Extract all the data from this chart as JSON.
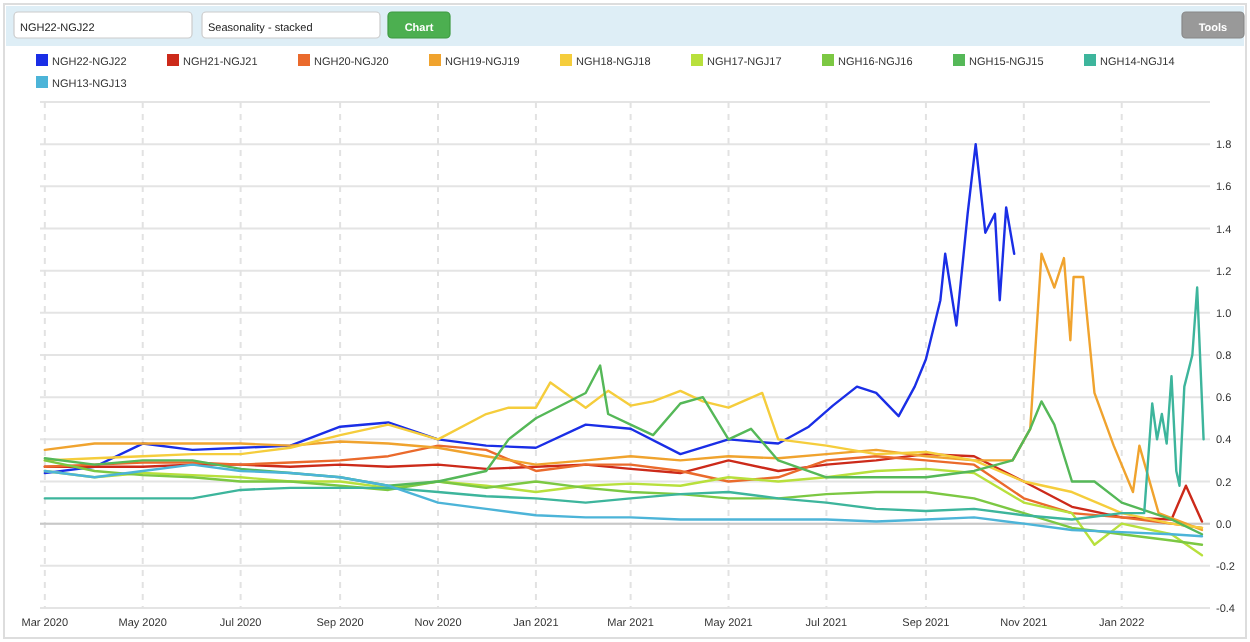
{
  "chart_data": {
    "type": "line",
    "annotations": [
      "NGH22-NGJ22",
      "Seasonality - stacked",
      "Chart",
      "Tools"
    ],
    "legend": "top",
    "grid": true,
    "xlim": [
      "2020-02-27",
      "2022-02-25"
    ],
    "ylim": [
      -0.4,
      2.0
    ],
    "xticks": [
      {
        "value": "2020-03-01",
        "label": "Mar 2020"
      },
      {
        "value": "2020-05-01",
        "label": "May 2020"
      },
      {
        "value": "2020-07-01",
        "label": "Jul 2020"
      },
      {
        "value": "2020-09-01",
        "label": "Sep 2020"
      },
      {
        "value": "2020-11-01",
        "label": "Nov 2020"
      },
      {
        "value": "2021-01-01",
        "label": "Jan 2021"
      },
      {
        "value": "2021-03-01",
        "label": "Mar 2021"
      },
      {
        "value": "2021-05-01",
        "label": "May 2021"
      },
      {
        "value": "2021-07-01",
        "label": "Jul 2021"
      },
      {
        "value": "2021-09-01",
        "label": "Sep 2021"
      },
      {
        "value": "2021-11-01",
        "label": "Nov 2021"
      },
      {
        "value": "2022-01-01",
        "label": "Jan 2022"
      }
    ],
    "yticks": [
      {
        "value": -0.4,
        "label": "-0.4"
      },
      {
        "value": -0.2,
        "label": "-0.2"
      },
      {
        "value": 0,
        "label": "0.0"
      },
      {
        "value": 0.2,
        "label": "0.2"
      },
      {
        "value": 0.4,
        "label": "0.4"
      },
      {
        "value": 0.6,
        "label": "0.6"
      },
      {
        "value": 0.8,
        "label": "0.8"
      },
      {
        "value": 1.0,
        "label": "1.0"
      },
      {
        "value": 1.2,
        "label": "1.2"
      },
      {
        "value": 1.4,
        "label": "1.4"
      },
      {
        "value": 1.6,
        "label": "1.6"
      },
      {
        "value": 1.8,
        "label": "1.8"
      },
      {
        "value": 2.0,
        "label": null
      }
    ],
    "x": [
      "2020-03-01",
      "2020-04-01",
      "2020-05-01",
      "2020-06-01",
      "2020-07-01",
      "2020-08-01",
      "2020-09-01",
      "2020-10-01",
      "2020-11-01",
      "2020-12-01",
      "2021-01-01",
      "2021-02-01",
      "2021-03-01",
      "2021-04-01",
      "2021-05-01",
      "2021-06-01",
      "2021-07-01",
      "2021-08-01",
      "2021-09-01",
      "2021-10-01",
      "2021-11-01",
      "2021-12-01",
      "2022-01-01",
      "2022-02-01",
      "2022-02-20"
    ],
    "series": [
      {
        "name": "NGH22-NGJ22",
        "color": "#1a2ee6",
        "x": [
          "2020-03-01",
          "2020-04-01",
          "2020-05-01",
          "2020-06-01",
          "2020-07-01",
          "2020-08-01",
          "2020-09-01",
          "2020-10-01",
          "2020-11-01",
          "2020-12-01",
          "2021-01-01",
          "2021-02-01",
          "2021-03-01",
          "2021-04-01",
          "2021-05-01",
          "2021-06-01",
          "2021-06-20",
          "2021-07-05",
          "2021-07-20",
          "2021-08-01",
          "2021-08-15",
          "2021-08-25",
          "2021-09-01",
          "2021-09-10",
          "2021-09-13",
          "2021-09-20",
          "2021-09-27",
          "2021-10-02",
          "2021-10-08",
          "2021-10-14",
          "2021-10-17",
          "2021-10-21",
          "2021-10-26"
        ],
        "values": [
          0.24,
          0.27,
          0.38,
          0.35,
          0.36,
          0.37,
          0.46,
          0.48,
          0.4,
          0.37,
          0.36,
          0.47,
          0.45,
          0.33,
          0.4,
          0.38,
          0.46,
          0.56,
          0.65,
          0.62,
          0.51,
          0.65,
          0.78,
          1.06,
          1.28,
          0.94,
          1.47,
          1.8,
          1.38,
          1.47,
          1.06,
          1.5,
          1.28
        ]
      },
      {
        "name": "NGH21-NGJ21",
        "color": "#cc2a1a",
        "x": [
          "2020-03-01",
          "2020-04-01",
          "2020-05-01",
          "2020-06-01",
          "2020-07-01",
          "2020-08-01",
          "2020-09-01",
          "2020-10-01",
          "2020-11-01",
          "2020-12-01",
          "2021-01-01",
          "2021-02-01",
          "2021-03-01",
          "2021-04-01",
          "2021-05-01",
          "2021-06-01",
          "2021-07-01",
          "2021-08-01",
          "2021-09-01",
          "2021-10-01",
          "2021-11-01",
          "2021-12-01",
          "2022-01-01",
          "2022-02-01",
          "2022-02-10",
          "2022-02-20"
        ],
        "values": [
          0.27,
          0.27,
          0.27,
          0.28,
          0.28,
          0.27,
          0.28,
          0.27,
          0.28,
          0.26,
          0.27,
          0.28,
          0.26,
          0.24,
          0.3,
          0.25,
          0.28,
          0.3,
          0.33,
          0.32,
          0.2,
          0.08,
          0.03,
          0.02,
          0.18,
          0.01
        ]
      },
      {
        "name": "NGH20-NGJ20",
        "color": "#ea6a2c",
        "values": [
          0.27,
          0.28,
          0.29,
          0.29,
          0.28,
          0.29,
          0.3,
          0.32,
          0.37,
          0.35,
          0.25,
          0.28,
          0.28,
          0.25,
          0.2,
          0.22,
          0.3,
          0.32,
          0.3,
          0.28,
          0.12,
          0.05,
          0.03,
          0.0,
          -0.02
        ]
      },
      {
        "name": "NGH19-NGJ19",
        "color": "#f0a32e",
        "x": [
          "2020-03-01",
          "2020-04-01",
          "2020-05-01",
          "2020-06-01",
          "2020-07-01",
          "2020-08-01",
          "2020-09-01",
          "2020-10-01",
          "2020-11-01",
          "2020-12-01",
          "2021-01-01",
          "2021-02-01",
          "2021-03-01",
          "2021-04-01",
          "2021-05-01",
          "2021-06-01",
          "2021-07-01",
          "2021-08-01",
          "2021-09-01",
          "2021-10-01",
          "2021-10-25",
          "2021-11-05",
          "2021-11-12",
          "2021-11-20",
          "2021-11-26",
          "2021-11-30",
          "2021-12-02",
          "2021-12-08",
          "2021-12-15",
          "2021-12-27",
          "2022-01-08",
          "2022-01-12",
          "2022-01-24",
          "2022-02-10",
          "2022-02-20"
        ],
        "values": [
          0.35,
          0.38,
          0.38,
          0.38,
          0.38,
          0.37,
          0.39,
          0.38,
          0.36,
          0.32,
          0.28,
          0.3,
          0.32,
          0.3,
          0.32,
          0.31,
          0.33,
          0.35,
          0.32,
          0.3,
          0.3,
          0.45,
          1.28,
          1.12,
          1.26,
          0.87,
          1.17,
          1.17,
          0.62,
          0.37,
          0.15,
          0.37,
          0.05,
          0.0,
          -0.03
        ]
      },
      {
        "name": "NGH18-NGJ18",
        "color": "#f5cd3c",
        "x": [
          "2020-03-01",
          "2020-04-01",
          "2020-05-01",
          "2020-06-01",
          "2020-07-01",
          "2020-08-01",
          "2020-09-01",
          "2020-10-01",
          "2020-11-01",
          "2020-12-01",
          "2020-12-15",
          "2021-01-01",
          "2021-01-10",
          "2021-02-01",
          "2021-02-15",
          "2021-03-01",
          "2021-03-15",
          "2021-04-01",
          "2021-04-15",
          "2021-05-01",
          "2021-05-22",
          "2021-06-01",
          "2021-07-01",
          "2021-08-01",
          "2021-09-01",
          "2021-10-01",
          "2021-11-01",
          "2021-12-01",
          "2022-01-01",
          "2022-02-01",
          "2022-02-20"
        ],
        "values": [
          0.3,
          0.31,
          0.32,
          0.33,
          0.33,
          0.36,
          0.42,
          0.47,
          0.4,
          0.52,
          0.55,
          0.55,
          0.67,
          0.55,
          0.63,
          0.56,
          0.58,
          0.63,
          0.58,
          0.55,
          0.62,
          0.4,
          0.37,
          0.33,
          0.34,
          0.3,
          0.2,
          0.15,
          0.05,
          0.0,
          -0.02
        ]
      },
      {
        "name": "NGH17-NGJ17",
        "color": "#b8e03c",
        "x": [
          "2020-03-01",
          "2020-04-01",
          "2020-05-01",
          "2020-06-01",
          "2020-07-01",
          "2020-08-01",
          "2020-09-01",
          "2020-10-01",
          "2020-11-01",
          "2020-12-01",
          "2021-01-01",
          "2021-02-01",
          "2021-03-01",
          "2021-04-01",
          "2021-05-01",
          "2021-06-01",
          "2021-07-01",
          "2021-08-01",
          "2021-09-01",
          "2021-10-01",
          "2021-11-01",
          "2021-12-01",
          "2021-12-15",
          "2022-01-01",
          "2022-02-01",
          "2022-02-20"
        ],
        "values": [
          0.25,
          0.22,
          0.24,
          0.23,
          0.22,
          0.2,
          0.2,
          0.17,
          0.2,
          0.18,
          0.15,
          0.18,
          0.19,
          0.18,
          0.22,
          0.2,
          0.22,
          0.25,
          0.26,
          0.24,
          0.1,
          0.05,
          -0.1,
          0.0,
          -0.05,
          -0.15
        ]
      },
      {
        "name": "NGH16-NGJ16",
        "color": "#7cc843",
        "values": [
          0.3,
          0.25,
          0.23,
          0.22,
          0.2,
          0.2,
          0.18,
          0.16,
          0.2,
          0.17,
          0.2,
          0.17,
          0.15,
          0.14,
          0.12,
          0.12,
          0.14,
          0.15,
          0.15,
          0.12,
          0.05,
          -0.02,
          -0.05,
          -0.08,
          -0.1
        ]
      },
      {
        "name": "NGH15-NGJ15",
        "color": "#55b858",
        "x": [
          "2020-03-01",
          "2020-04-01",
          "2020-05-01",
          "2020-06-01",
          "2020-07-01",
          "2020-08-01",
          "2020-09-01",
          "2020-10-01",
          "2020-11-01",
          "2020-12-01",
          "2020-12-15",
          "2021-01-01",
          "2021-02-01",
          "2021-02-10",
          "2021-02-15",
          "2021-03-01",
          "2021-03-15",
          "2021-04-01",
          "2021-04-15",
          "2021-05-01",
          "2021-05-15",
          "2021-06-01",
          "2021-07-01",
          "2021-08-01",
          "2021-09-01",
          "2021-10-01",
          "2021-10-25",
          "2021-11-05",
          "2021-11-12",
          "2021-11-20",
          "2021-12-01",
          "2021-12-15",
          "2022-01-01",
          "2022-02-01",
          "2022-02-20"
        ],
        "values": [
          0.31,
          0.28,
          0.3,
          0.3,
          0.26,
          0.24,
          0.22,
          0.18,
          0.2,
          0.25,
          0.4,
          0.5,
          0.62,
          0.75,
          0.52,
          0.47,
          0.42,
          0.57,
          0.6,
          0.4,
          0.45,
          0.3,
          0.22,
          0.22,
          0.22,
          0.25,
          0.3,
          0.45,
          0.58,
          0.47,
          0.2,
          0.2,
          0.1,
          0.02,
          -0.05
        ]
      },
      {
        "name": "NGH14-NGJ14",
        "color": "#3db59c",
        "x": [
          "2020-03-01",
          "2020-04-01",
          "2020-05-01",
          "2020-06-01",
          "2020-07-01",
          "2020-08-01",
          "2020-09-01",
          "2020-10-01",
          "2020-11-01",
          "2020-12-01",
          "2021-01-01",
          "2021-02-01",
          "2021-03-01",
          "2021-04-01",
          "2021-05-01",
          "2021-06-01",
          "2021-07-01",
          "2021-08-01",
          "2021-09-01",
          "2021-10-01",
          "2021-11-01",
          "2021-12-01",
          "2022-01-01",
          "2022-01-15",
          "2022-01-20",
          "2022-01-23",
          "2022-01-26",
          "2022-01-29",
          "2022-02-01",
          "2022-02-04",
          "2022-02-06",
          "2022-02-09",
          "2022-02-14",
          "2022-02-17",
          "2022-02-21"
        ],
        "values": [
          0.12,
          0.12,
          0.12,
          0.12,
          0.16,
          0.17,
          0.17,
          0.17,
          0.15,
          0.13,
          0.12,
          0.1,
          0.12,
          0.14,
          0.15,
          0.12,
          0.1,
          0.07,
          0.06,
          0.07,
          0.04,
          0.02,
          0.05,
          0.05,
          0.57,
          0.4,
          0.52,
          0.38,
          0.7,
          0.25,
          0.18,
          0.65,
          0.8,
          1.12,
          0.4
        ]
      },
      {
        "name": "NGH13-NGJ13",
        "color": "#4cb4d8",
        "values": [
          0.25,
          0.22,
          0.25,
          0.28,
          0.25,
          0.24,
          0.22,
          0.18,
          0.1,
          0.07,
          0.04,
          0.03,
          0.03,
          0.02,
          0.02,
          0.02,
          0.02,
          0.01,
          0.02,
          0.03,
          0.0,
          -0.03,
          -0.04,
          -0.05,
          -0.06
        ]
      }
    ]
  }
}
